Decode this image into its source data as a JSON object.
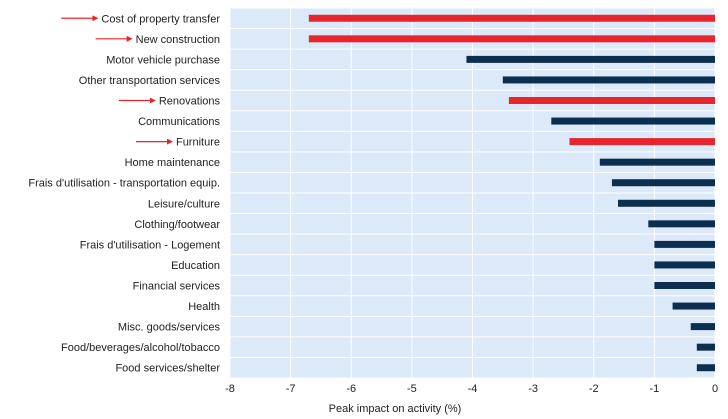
{
  "chart_data": {
    "type": "bar",
    "orientation": "horizontal",
    "xlabel": "Peak impact on activity (%)",
    "xlim": [
      -8,
      0
    ],
    "xticks": [
      "-8",
      "-7",
      "-6",
      "-5",
      "-4",
      "-3",
      "-2",
      "-1",
      "0"
    ],
    "grid": true,
    "colors": {
      "highlight": "#e8242c",
      "default": "#0d2f4f",
      "plot_background": "#dce9f9",
      "arrow": "#e8242c"
    },
    "categories": [
      "Cost of property transfer",
      "New construction",
      "Motor vehicle purchase",
      "Other transportation services",
      "Renovations",
      "Communications",
      "Furniture",
      "Home maintenance",
      "Frais d'utilisation - transportation equip.",
      "Leisure/culture",
      "Clothing/footwear",
      "Frais d'utilisation - Logement",
      "Education",
      "Financial services",
      "Health",
      "Misc. goods/services",
      "Food/beverages/alcohol/tobacco",
      "Food services/shelter"
    ],
    "values": [
      -6.7,
      -6.7,
      -4.1,
      -3.5,
      -3.4,
      -2.7,
      -2.4,
      -1.9,
      -1.7,
      -1.6,
      -1.1,
      -1.0,
      -1.0,
      -1.0,
      -0.7,
      -0.4,
      -0.3,
      -0.3
    ],
    "highlighted": [
      true,
      true,
      false,
      false,
      true,
      false,
      true,
      false,
      false,
      false,
      false,
      false,
      false,
      false,
      false,
      false,
      false,
      false
    ]
  }
}
